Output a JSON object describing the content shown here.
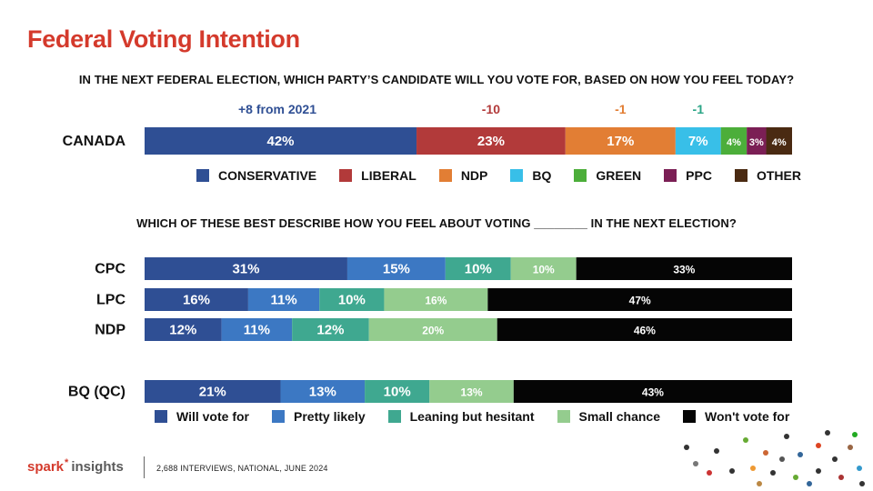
{
  "title": "Federal Voting Intention",
  "logo": {
    "brand1": "spark",
    "star": "*",
    "brand2": "insights"
  },
  "source": "2,688 INTERVIEWS, NATIONAL, JUNE 2024",
  "colors": {
    "CONSERVATIVE": "#2f4f94",
    "LIBERAL": "#b23a3a",
    "NDP": "#e27e34",
    "BQ": "#38bfe8",
    "GREEN": "#4cae3a",
    "PPC": "#7b1f55",
    "OTHER": "#4a2a12",
    "Will vote for": "#2f4f94",
    "Pretty likely": "#3c78c3",
    "Leaning but hesitant": "#3fa890",
    "Small chance": "#94cc8e",
    "Won't vote for": "#050505",
    "title": "#d43a2c"
  },
  "chart_data": [
    {
      "type": "bar",
      "orientation": "horizontal",
      "stacked": true,
      "title": "IN THE NEXT FEDERAL ELECTION, WHICH PARTY’S CANDIDATE WILL YOU VOTE FOR, BASED ON HOW YOU FEEL TODAY?",
      "categories": [
        "CANADA"
      ],
      "series": [
        {
          "name": "CONSERVATIVE",
          "values": [
            42
          ],
          "labels": [
            "42%"
          ],
          "change": "+8 from 2021"
        },
        {
          "name": "LIBERAL",
          "values": [
            23
          ],
          "labels": [
            "23%"
          ],
          "change": "-10"
        },
        {
          "name": "NDP",
          "values": [
            17
          ],
          "labels": [
            "17%"
          ],
          "change": "-1"
        },
        {
          "name": "BQ",
          "values": [
            7
          ],
          "labels": [
            "7%"
          ],
          "change": "-1"
        },
        {
          "name": "GREEN",
          "values": [
            4
          ],
          "labels": [
            "4%"
          ]
        },
        {
          "name": "PPC",
          "values": [
            3
          ],
          "labels": [
            "3%"
          ]
        },
        {
          "name": "OTHER",
          "values": [
            4
          ],
          "labels": [
            "4%"
          ]
        }
      ],
      "legend": [
        "CONSERVATIVE",
        "LIBERAL",
        "NDP",
        "BQ",
        "GREEN",
        "PPC",
        "OTHER"
      ],
      "legend_position": "bottom"
    },
    {
      "type": "bar",
      "orientation": "horizontal",
      "stacked": true,
      "title": "WHICH OF THESE BEST DESCRIBE HOW YOU FEEL ABOUT VOTING ________ IN THE NEXT ELECTION?",
      "categories": [
        "CPC",
        "LPC",
        "NDP",
        "BQ (QC)"
      ],
      "series": [
        {
          "name": "Will vote for",
          "values": [
            31,
            16,
            12,
            21
          ],
          "labels": [
            "31%",
            "16%",
            "12%",
            "21%"
          ]
        },
        {
          "name": "Pretty likely",
          "values": [
            15,
            11,
            11,
            13
          ],
          "labels": [
            "15%",
            "11%",
            "11%",
            "13%"
          ]
        },
        {
          "name": "Leaning but hesitant",
          "values": [
            10,
            10,
            12,
            10
          ],
          "labels": [
            "10%",
            "10%",
            "12%",
            "10%"
          ]
        },
        {
          "name": "Small chance",
          "values": [
            10,
            16,
            20,
            13
          ],
          "labels": [
            "10%",
            "16%",
            "20%",
            "13%"
          ]
        },
        {
          "name": "Won't vote for",
          "values": [
            33,
            47,
            46,
            43
          ],
          "labels": [
            "33%",
            "47%",
            "46%",
            "43%"
          ]
        }
      ],
      "legend": [
        "Will vote for",
        "Pretty likely",
        "Leaning but hesitant",
        "Small chance",
        "Won't vote for"
      ],
      "legend_position": "bottom"
    }
  ]
}
